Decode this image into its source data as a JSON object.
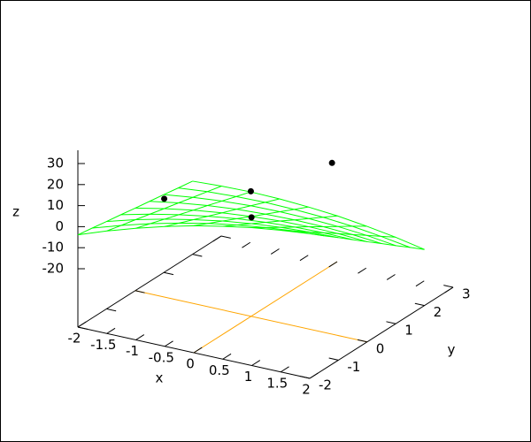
{
  "chart_data": {
    "type": "surface3d",
    "xlabel": "x",
    "ylabel": "y",
    "zlabel": "z",
    "xlim": [
      -2,
      2
    ],
    "ylim": [
      -2,
      3
    ],
    "zlim": [
      -20,
      30
    ],
    "xticks": [
      -2,
      -1.5,
      -1,
      -0.5,
      0,
      0.5,
      1,
      1.5,
      2
    ],
    "yticks": [
      -2,
      -1,
      0,
      1,
      2,
      3
    ],
    "zticks": [
      -20,
      -10,
      0,
      10,
      20,
      30
    ],
    "zeroaxis_color": "#ffa500",
    "surface": {
      "color": "#00ff00",
      "x": [
        -2,
        -1.5,
        -1,
        -0.5,
        0,
        0.5,
        1,
        1.5,
        2
      ],
      "y": [
        -2,
        -1.5,
        -1,
        -0.5,
        0,
        0.5,
        1,
        1.5,
        2
      ],
      "z": [
        [
          -3.9,
          -5.0,
          -6.2,
          -7.3,
          -8.5,
          -9.6,
          -10.7,
          -11.9,
          -13.0
        ],
        [
          1.0,
          -0.7,
          -2.3,
          -4.0,
          -5.7,
          -7.3,
          -9.0,
          -10.6,
          -12.3
        ],
        [
          5.3,
          3.2,
          1.0,
          -1.2,
          -3.4,
          -5.5,
          -7.7,
          -9.9,
          -12.0
        ],
        [
          9.2,
          6.5,
          3.8,
          1.1,
          -1.6,
          -4.2,
          -6.9,
          -9.6,
          -12.3
        ],
        [
          12.6,
          9.4,
          6.2,
          3.0,
          -0.3,
          -3.5,
          -6.7,
          -9.9,
          -13.1
        ],
        [
          15.4,
          11.7,
          8.0,
          4.3,
          0.6,
          -3.2,
          -6.9,
          -10.6,
          -14.3
        ],
        [
          17.8,
          13.5,
          9.3,
          5.1,
          0.9,
          -3.4,
          -7.6,
          -11.8,
          -16.1
        ],
        [
          19.6,
          14.9,
          10.1,
          5.4,
          0.7,
          -4.1,
          -8.8,
          -13.6,
          -18.3
        ],
        [
          21.0,
          15.7,
          10.5,
          5.2,
          -0.1,
          -5.3,
          -10.6,
          -15.8,
          -21.1
        ]
      ]
    },
    "points": {
      "color": "#000000",
      "x": [
        -1.5,
        -0.5,
        0.5,
        0.9
      ],
      "y": [
        0,
        1,
        -1,
        1
      ],
      "z": [
        -1,
        0,
        11,
        22
      ]
    }
  }
}
